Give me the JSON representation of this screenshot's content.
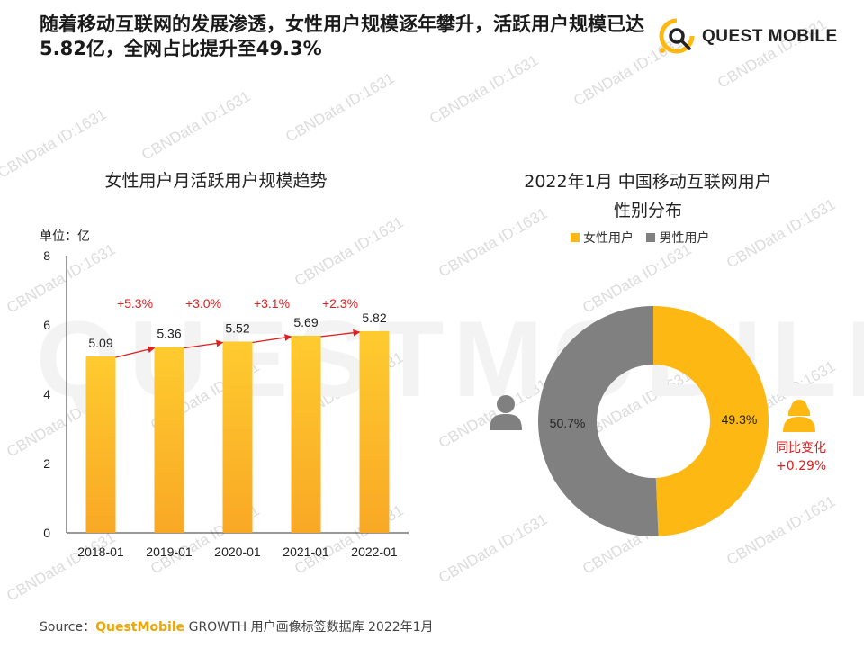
{
  "headline": "随着移动互联网的发展渗透，女性用户规模逐年攀升，活跃用户规模已达5.82亿，全网占比提升至49.3%",
  "logo": {
    "text": "QUEST MOBILE"
  },
  "watermark": {
    "text": "CBNData ID:1631",
    "big_text": "QUESTMOBILE"
  },
  "colors": {
    "accent": "#FDB813",
    "gray": "#808080",
    "red": "#e02020"
  },
  "chart_data": [
    {
      "type": "bar",
      "title": "女性用户月活跃用户规模趋势",
      "unit_label": "单位：亿",
      "categories": [
        "2018-01",
        "2019-01",
        "2020-01",
        "2021-01",
        "2022-01"
      ],
      "values": [
        5.09,
        5.36,
        5.52,
        5.69,
        5.82
      ],
      "value_labels": [
        "5.09",
        "5.36",
        "5.52",
        "5.69",
        "5.82"
      ],
      "growth_labels": [
        "+5.3%",
        "+3.0%",
        "+3.1%",
        "+2.3%"
      ],
      "yticks": [
        "0",
        "2",
        "4",
        "6",
        "8"
      ],
      "ylim": [
        0,
        8
      ]
    },
    {
      "type": "pie",
      "title_line1": "2022年1月 中国移动互联网用户",
      "title_line2": "性别分布",
      "series": [
        {
          "name": "女性用户",
          "value": 49.3,
          "label": "49.3%",
          "color": "#FDB813"
        },
        {
          "name": "男性用户",
          "value": 50.7,
          "label": "50.7%",
          "color": "#808080"
        }
      ],
      "change_label_line1": "同比变化",
      "change_label_line2": "+0.29%"
    }
  ],
  "source": {
    "prefix": "Source：",
    "brand": "QuestMobile",
    "rest": " GROWTH 用户画像标签数据库 2022年1月"
  }
}
